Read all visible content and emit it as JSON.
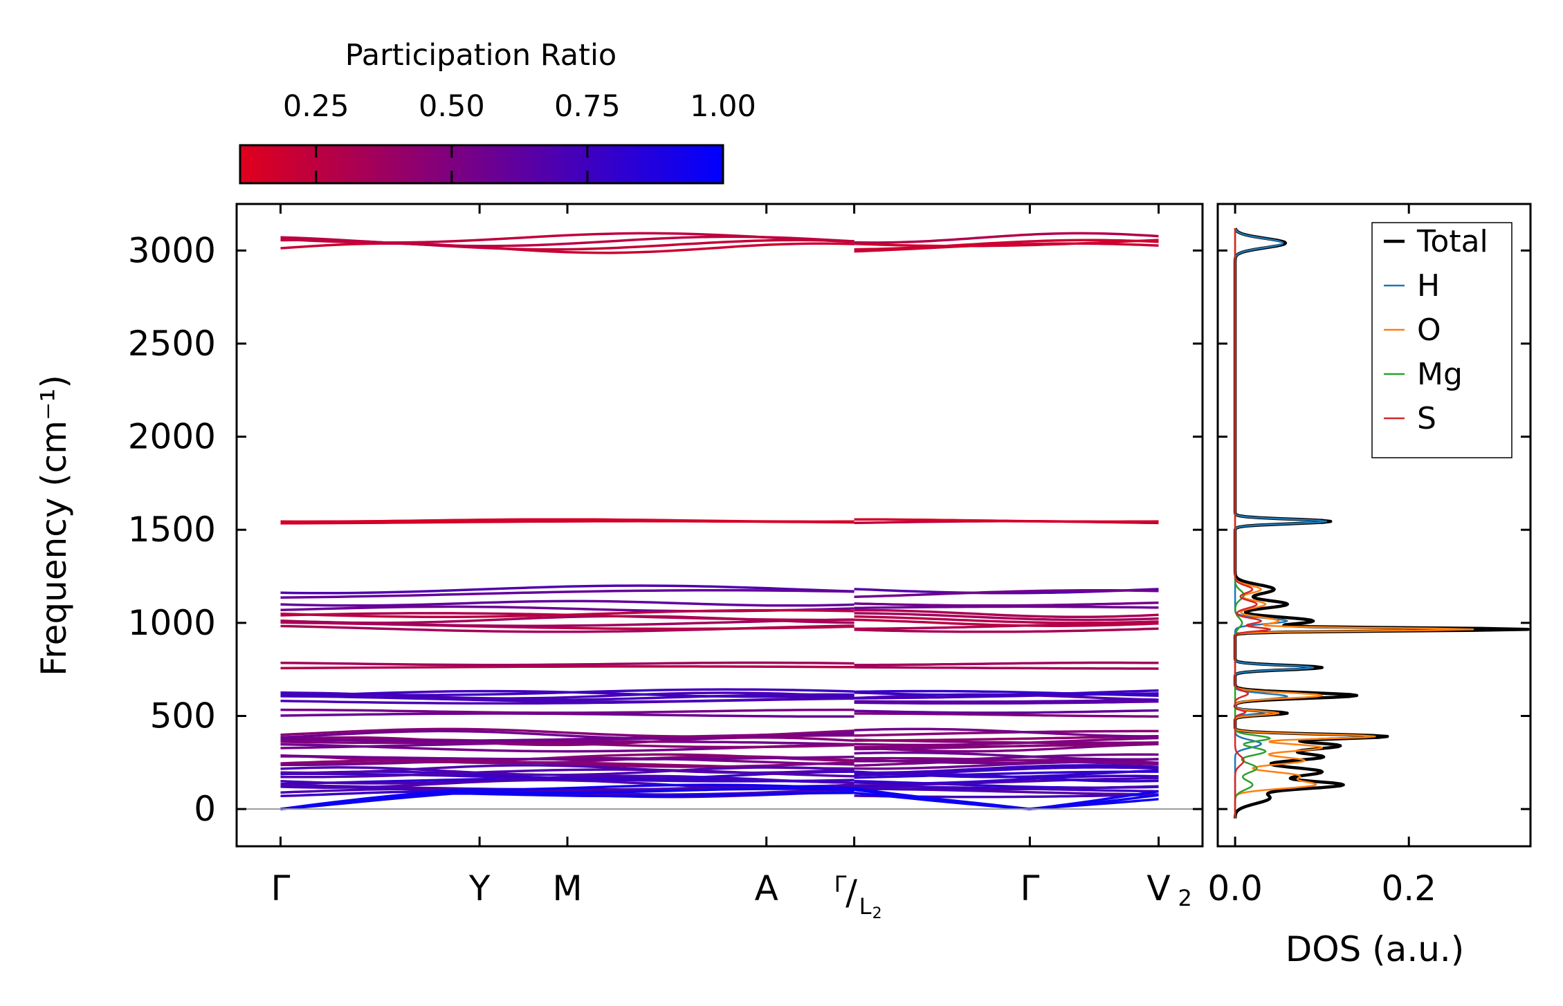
{
  "colorbar": {
    "title": "Participation Ratio",
    "ticks": [
      0.25,
      0.5,
      0.75,
      1.0
    ],
    "tick_labels": [
      "0.25",
      "0.50",
      "0.75",
      "1.00"
    ],
    "range": [
      0.11,
      1.0
    ],
    "color_low": "#e0001c",
    "color_high": "#0000ff"
  },
  "chart_data": [
    {
      "type": "line",
      "name": "phonon-band-structure",
      "ylabel": "Frequency (cm⁻¹)",
      "ylim": [
        -200,
        3250
      ],
      "yticks": [
        0,
        500,
        1000,
        1500,
        2000,
        2500,
        3000
      ],
      "ytick_labels": [
        "0",
        "500",
        "1000",
        "1500",
        "2000",
        "2500",
        "3000"
      ],
      "xlim": [
        -0.15,
        3.15
      ],
      "kpoints": [
        {
          "label": "Γ",
          "x": 0.0
        },
        {
          "label": "Y",
          "x": 0.68
        },
        {
          "label": "M",
          "x": 0.98
        },
        {
          "label": "A",
          "x": 1.66
        },
        {
          "label": "Γ/L₂",
          "x": 1.96
        },
        {
          "label": "Γ",
          "x": 2.56
        },
        {
          "label": "V₂",
          "x": 3.0
        }
      ],
      "kpoint_labels": {
        "gamma1": "Γ",
        "y": "Y",
        "m": "M",
        "a": "A",
        "break_top": "Γ",
        "break_sep": "/",
        "break_bottom": "L",
        "break_sub": "2",
        "gamma2": "Γ",
        "v": "V",
        "v_sub": "2"
      },
      "segment_ranges": [
        [
          0.0,
          1.96
        ],
        [
          1.96,
          3.0
        ]
      ],
      "band_groups": [
        {
          "center": 3040,
          "count": 4,
          "spread": 55,
          "pr": 0.22,
          "wiggle": 25
        },
        {
          "center": 1545,
          "count": 2,
          "spread": 10,
          "pr": 0.2,
          "wiggle": 6
        },
        {
          "center": 1180,
          "count": 1,
          "spread": 0,
          "pr": 0.62,
          "wiggle": 20
        },
        {
          "center": 1155,
          "count": 1,
          "spread": 0,
          "pr": 0.6,
          "wiggle": 20
        },
        {
          "center": 1090,
          "count": 2,
          "spread": 30,
          "pr": 0.55,
          "wiggle": 12
        },
        {
          "center": 1010,
          "count": 6,
          "spread": 80,
          "pr": 0.3,
          "wiggle": 18
        },
        {
          "center": 770,
          "count": 2,
          "spread": 20,
          "pr": 0.3,
          "wiggle": 6
        },
        {
          "center": 605,
          "count": 6,
          "spread": 45,
          "pr": 0.72,
          "wiggle": 15
        },
        {
          "center": 515,
          "count": 2,
          "spread": 20,
          "pr": 0.55,
          "wiggle": 8
        },
        {
          "center": 370,
          "count": 8,
          "spread": 80,
          "pr": 0.5,
          "wiggle": 20
        },
        {
          "center": 260,
          "count": 6,
          "spread": 50,
          "pr": 0.5,
          "wiggle": 18
        },
        {
          "center": 175,
          "count": 8,
          "spread": 80,
          "pr": 0.75,
          "wiggle": 20
        },
        {
          "center": 100,
          "count": 4,
          "spread": 40,
          "pr": 0.7,
          "wiggle": 15
        }
      ],
      "acoustic": {
        "count": 3,
        "max": 130,
        "pr": 0.95
      }
    },
    {
      "type": "line",
      "name": "density-of-states",
      "xlabel": "DOS (a.u.)",
      "xlim": [
        -0.02,
        0.34
      ],
      "xticks": [
        0.0,
        0.2
      ],
      "xtick_labels": [
        "0.0",
        "0.2"
      ],
      "ylim": [
        -200,
        3250
      ],
      "legend_position": "top-right",
      "series": [
        {
          "name": "Total",
          "color": "#000000",
          "width": 4.5,
          "peaks": [
            [
              3040,
              0.058,
              25
            ],
            [
              1545,
              0.11,
              12
            ],
            [
              1180,
              0.045,
              25
            ],
            [
              1100,
              0.06,
              20
            ],
            [
              1010,
              0.09,
              20
            ],
            [
              965,
              0.33,
              8
            ],
            [
              760,
              0.1,
              12
            ],
            [
              610,
              0.14,
              15
            ],
            [
              515,
              0.06,
              10
            ],
            [
              390,
              0.17,
              12
            ],
            [
              340,
              0.12,
              20
            ],
            [
              280,
              0.1,
              20
            ],
            [
              200,
              0.1,
              25
            ],
            [
              130,
              0.12,
              20
            ],
            [
              60,
              0.04,
              30
            ]
          ]
        },
        {
          "name": "H",
          "color": "#1f77b4",
          "width": 2.5,
          "peaks": [
            [
              3040,
              0.055,
              25
            ],
            [
              1545,
              0.105,
              12
            ],
            [
              1010,
              0.06,
              15
            ],
            [
              760,
              0.09,
              12
            ],
            [
              605,
              0.06,
              15
            ],
            [
              520,
              0.035,
              10
            ],
            [
              350,
              0.03,
              20
            ]
          ]
        },
        {
          "name": "O",
          "color": "#ff7f0e",
          "width": 2.5,
          "peaks": [
            [
              1180,
              0.03,
              20
            ],
            [
              1100,
              0.035,
              20
            ],
            [
              1010,
              0.05,
              20
            ],
            [
              965,
              0.27,
              8
            ],
            [
              610,
              0.1,
              15
            ],
            [
              515,
              0.05,
              10
            ],
            [
              390,
              0.16,
              12
            ],
            [
              330,
              0.1,
              20
            ],
            [
              260,
              0.08,
              20
            ],
            [
              180,
              0.07,
              20
            ],
            [
              130,
              0.09,
              20
            ]
          ]
        },
        {
          "name": "Mg",
          "color": "#2ca02c",
          "width": 2.5,
          "peaks": [
            [
              1150,
              0.01,
              25
            ],
            [
              1000,
              0.008,
              25
            ],
            [
              380,
              0.04,
              15
            ],
            [
              310,
              0.035,
              20
            ],
            [
              220,
              0.025,
              25
            ],
            [
              130,
              0.02,
              25
            ]
          ]
        },
        {
          "name": "S",
          "color": "#d62728",
          "width": 2.5,
          "peaks": [
            [
              1180,
              0.02,
              20
            ],
            [
              1100,
              0.025,
              20
            ],
            [
              1010,
              0.03,
              15
            ],
            [
              965,
              0.04,
              10
            ],
            [
              620,
              0.015,
              15
            ],
            [
              520,
              0.012,
              10
            ],
            [
              260,
              0.01,
              25
            ]
          ]
        }
      ]
    }
  ]
}
